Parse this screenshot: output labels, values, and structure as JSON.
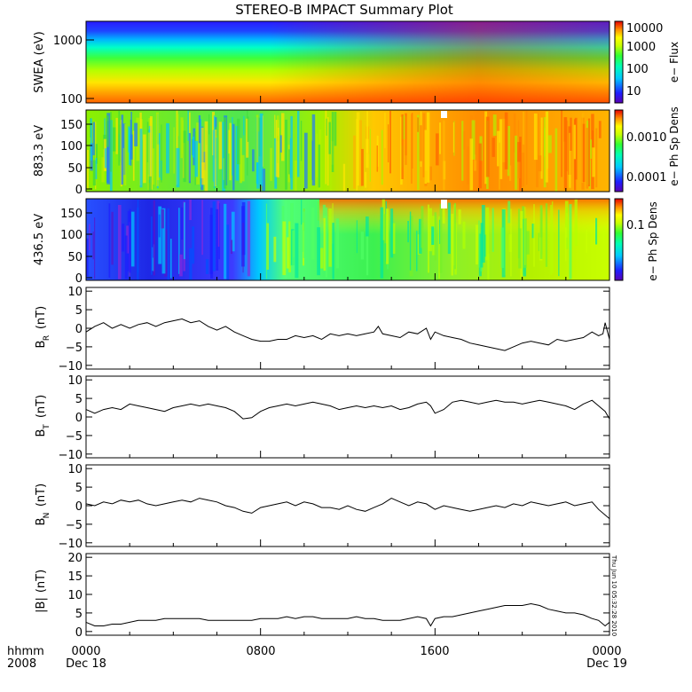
{
  "chart_data": {
    "type": "line",
    "title": "STEREO-B IMPACT Summary Plot",
    "x_axis": {
      "row1_label": "hhmm",
      "row2_label": "2008",
      "ticks": [
        {
          "hhmm": "0000",
          "date": "Dec 18",
          "hour": 0
        },
        {
          "hhmm": "0800",
          "date": "",
          "hour": 8
        },
        {
          "hhmm": "1600",
          "date": "",
          "hour": 16
        },
        {
          "hhmm": "0000",
          "date": "Dec 19",
          "hour": 24
        }
      ],
      "range_hours": [
        0,
        24
      ]
    },
    "timestamp": "Thu Jun 10 05:32:28 2010",
    "spectrograms": [
      {
        "ylabel": "SWEA (eV)",
        "colorbar_label": "e− Flux",
        "colorbar_ticks": [
          "10000",
          "1000",
          "100",
          "10"
        ],
        "y_ticks": [
          "1000",
          "100"
        ],
        "y_scale": "log",
        "y_range_eV": [
          90,
          2000
        ]
      },
      {
        "ylabel": "883.3 eV",
        "colorbar_label": "e− Ph Sp Dens",
        "colorbar_ticks": [
          "0.0010",
          "0.0001"
        ],
        "y_ticks": [
          "150",
          "100",
          "50",
          "0"
        ],
        "y_range": [
          0,
          180
        ]
      },
      {
        "ylabel": "436.5 eV",
        "colorbar_label": "e− Ph Sp Dens",
        "colorbar_ticks": [
          "0.1"
        ],
        "y_ticks": [
          "150",
          "100",
          "50",
          "0"
        ],
        "y_range": [
          0,
          180
        ]
      }
    ],
    "series": [
      {
        "name": "BR",
        "ylabel_main": "B",
        "ylabel_sub": "R",
        "ylabel_unit": "(nT)",
        "y_ticks": [
          "10",
          "5",
          "0",
          "−5",
          "−10"
        ],
        "ylim": [
          -11,
          11
        ],
        "x": [
          0,
          0.4,
          0.8,
          1.2,
          1.6,
          2.0,
          2.4,
          2.8,
          3.2,
          3.6,
          4.0,
          4.4,
          4.8,
          5.2,
          5.6,
          6.0,
          6.4,
          6.8,
          7.2,
          7.6,
          8.0,
          8.4,
          8.8,
          9.2,
          9.6,
          10.0,
          10.4,
          10.8,
          11.2,
          11.6,
          12.0,
          12.4,
          12.8,
          13.2,
          13.4,
          13.6,
          14.0,
          14.4,
          14.8,
          15.2,
          15.6,
          15.8,
          16.0,
          16.4,
          16.8,
          17.2,
          17.6,
          18.0,
          18.4,
          18.8,
          19.2,
          19.6,
          20.0,
          20.4,
          20.8,
          21.2,
          21.6,
          22.0,
          22.4,
          22.8,
          23.2,
          23.5,
          23.7,
          23.8,
          24.0
        ],
        "values": [
          -1,
          0.5,
          1.5,
          0,
          1,
          0,
          1,
          1.5,
          0.5,
          1.5,
          2,
          2.5,
          1.5,
          2,
          0.5,
          -0.5,
          0.5,
          -1,
          -2,
          -3,
          -3.5,
          -3.5,
          -3,
          -3,
          -2,
          -2.5,
          -2,
          -3,
          -1.5,
          -2,
          -1.5,
          -2,
          -1.5,
          -1,
          0.5,
          -1.5,
          -2,
          -2.5,
          -1,
          -1.5,
          0,
          -3,
          -1,
          -2,
          -2.5,
          -3,
          -4,
          -4.5,
          -5,
          -5.5,
          -6,
          -5,
          -4,
          -3.5,
          -4,
          -4.5,
          -3,
          -3.5,
          -3,
          -2.5,
          -1,
          -2,
          -1.5,
          1.5,
          -3
        ]
      },
      {
        "name": "BT",
        "ylabel_main": "B",
        "ylabel_sub": "T",
        "ylabel_unit": "(nT)",
        "y_ticks": [
          "10",
          "5",
          "0",
          "−5",
          "−10"
        ],
        "ylim": [
          -11,
          11
        ],
        "x": [
          0,
          0.4,
          0.8,
          1.2,
          1.6,
          2.0,
          2.4,
          2.8,
          3.2,
          3.6,
          4.0,
          4.4,
          4.8,
          5.2,
          5.6,
          6.0,
          6.4,
          6.8,
          7.2,
          7.6,
          8.0,
          8.4,
          8.8,
          9.2,
          9.6,
          10.0,
          10.4,
          10.8,
          11.2,
          11.6,
          12.0,
          12.4,
          12.8,
          13.2,
          13.6,
          14.0,
          14.4,
          14.8,
          15.2,
          15.6,
          15.8,
          16.0,
          16.4,
          16.8,
          17.2,
          17.6,
          18.0,
          18.4,
          18.8,
          19.2,
          19.6,
          20.0,
          20.4,
          20.8,
          21.2,
          21.6,
          22.0,
          22.4,
          22.8,
          23.2,
          23.5,
          23.8,
          24.0
        ],
        "values": [
          2,
          1,
          2,
          2.5,
          2,
          3.5,
          3,
          2.5,
          2,
          1.5,
          2.5,
          3,
          3.5,
          3,
          3.5,
          3,
          2.5,
          1.5,
          -0.5,
          -0.2,
          1.5,
          2.5,
          3,
          3.5,
          3,
          3.5,
          4,
          3.5,
          3,
          2,
          2.5,
          3,
          2.5,
          3,
          2.5,
          3,
          2,
          2.5,
          3.5,
          4,
          3,
          1,
          2,
          4,
          4.5,
          4,
          3.5,
          4,
          4.5,
          4,
          4,
          3.5,
          4,
          4.5,
          4,
          3.5,
          3,
          2,
          3.5,
          4.5,
          3,
          1.5,
          -0.5
        ]
      },
      {
        "name": "BN",
        "ylabel_main": "B",
        "ylabel_sub": "N",
        "ylabel_unit": "(nT)",
        "y_ticks": [
          "10",
          "5",
          "0",
          "−5",
          "−10"
        ],
        "ylim": [
          -11,
          11
        ],
        "x": [
          0,
          0.4,
          0.8,
          1.2,
          1.6,
          2.0,
          2.4,
          2.8,
          3.2,
          3.6,
          4.0,
          4.4,
          4.8,
          5.2,
          5.6,
          6.0,
          6.4,
          6.8,
          7.2,
          7.6,
          8.0,
          8.4,
          8.8,
          9.2,
          9.6,
          10.0,
          10.4,
          10.8,
          11.2,
          11.6,
          12.0,
          12.4,
          12.8,
          13.2,
          13.6,
          14.0,
          14.4,
          14.8,
          15.2,
          15.6,
          16.0,
          16.4,
          16.8,
          17.2,
          17.6,
          18.0,
          18.4,
          18.8,
          19.2,
          19.6,
          20.0,
          20.4,
          20.8,
          21.2,
          21.6,
          22.0,
          22.4,
          22.8,
          23.2,
          23.5,
          23.8,
          24.0
        ],
        "values": [
          0.5,
          0,
          1,
          0.5,
          1.5,
          1,
          1.5,
          0.5,
          0,
          0.5,
          1,
          1.5,
          1,
          2,
          1.5,
          1,
          0,
          -0.5,
          -1.5,
          -2,
          -0.5,
          0,
          0.5,
          1,
          0,
          1,
          0.5,
          -0.5,
          -0.5,
          -1,
          0,
          -1,
          -1.5,
          -0.5,
          0.5,
          2,
          1,
          0,
          1,
          0.5,
          -1,
          0,
          -0.5,
          -1,
          -1.5,
          -1,
          -0.5,
          0,
          -0.5,
          0.5,
          0,
          1,
          0.5,
          0,
          0.5,
          1,
          0,
          0.5,
          1,
          -1,
          -2.5,
          -3.5
        ]
      },
      {
        "name": "|B|",
        "ylabel_main": "|B|",
        "ylabel_sub": "",
        "ylabel_unit": "(nT)",
        "y_ticks": [
          "20",
          "15",
          "10",
          "5",
          "0"
        ],
        "ylim": [
          -1,
          21
        ],
        "x": [
          0,
          0.4,
          0.8,
          1.2,
          1.6,
          2.0,
          2.4,
          2.8,
          3.2,
          3.6,
          4.0,
          4.4,
          4.8,
          5.2,
          5.6,
          6.0,
          6.4,
          6.8,
          7.2,
          7.6,
          8.0,
          8.4,
          8.8,
          9.2,
          9.6,
          10.0,
          10.4,
          10.8,
          11.2,
          11.6,
          12.0,
          12.4,
          12.8,
          13.2,
          13.6,
          14.0,
          14.4,
          14.8,
          15.2,
          15.6,
          15.8,
          16.0,
          16.4,
          16.8,
          17.2,
          17.6,
          18.0,
          18.4,
          18.8,
          19.2,
          19.6,
          20.0,
          20.4,
          20.8,
          21.2,
          21.6,
          22.0,
          22.4,
          22.8,
          23.2,
          23.5,
          23.8,
          24.0
        ],
        "values": [
          2.5,
          1.5,
          1.5,
          2,
          2,
          2.5,
          3,
          3,
          3,
          3.5,
          3.5,
          3.5,
          3.5,
          3.5,
          3,
          3,
          3,
          3,
          3,
          3,
          3.5,
          3.5,
          3.5,
          4,
          3.5,
          4,
          4,
          3.5,
          3.5,
          3.5,
          3.5,
          4,
          3.5,
          3.5,
          3,
          3,
          3,
          3.5,
          4,
          3.5,
          1.5,
          3.5,
          4,
          4,
          4.5,
          5,
          5.5,
          6,
          6.5,
          7,
          7,
          7,
          7.5,
          7,
          6,
          5.5,
          5,
          5,
          4.5,
          3.5,
          3,
          1.5,
          2.5
        ]
      }
    ]
  }
}
